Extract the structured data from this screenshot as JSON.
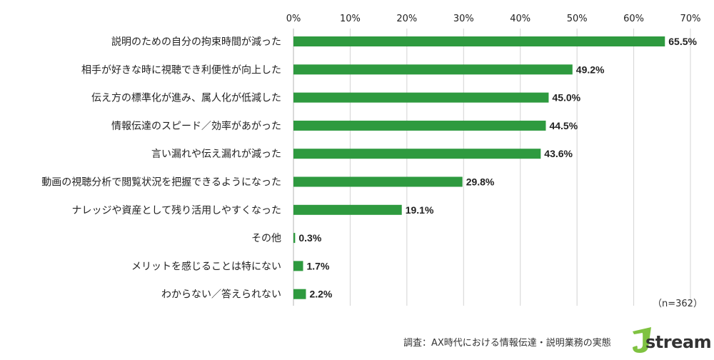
{
  "chart_data": {
    "type": "bar",
    "orientation": "horizontal",
    "categories": [
      "説明のための自分の拘束時間が減った",
      "相手が好きな時に視聴でき利便性が向上した",
      "伝え方の標準化が進み、属人化が低減した",
      "情報伝達のスピード／効率があがった",
      "言い漏れや伝え漏れが減った",
      "動画の視聴分析で閲覧状況を把握できるようになった",
      "ナレッジや資産として残り活用しやすくなった",
      "その他",
      "メリットを感じることは特にない",
      "わからない／答えられない"
    ],
    "values": [
      65.5,
      49.2,
      45.0,
      44.5,
      43.6,
      29.8,
      19.1,
      0.3,
      1.7,
      2.2
    ],
    "value_labels": [
      "65.5%",
      "49.2%",
      "45.0%",
      "44.5%",
      "43.6%",
      "29.8%",
      "19.1%",
      "0.3%",
      "1.7%",
      "2.2%"
    ],
    "xlim": [
      0,
      70
    ],
    "x_ticks": [
      0,
      10,
      20,
      30,
      40,
      50,
      60,
      70
    ],
    "x_tick_labels": [
      "0%",
      "10%",
      "20%",
      "30%",
      "40%",
      "50%",
      "60%",
      "70%"
    ],
    "x_axis_position": "top",
    "grid": true,
    "bar_color": "#2e9a3f",
    "grid_color": "#d3d3d3"
  },
  "notes": {
    "sample": "（n=362）",
    "source": "調査：AX時代における情報伝達・説明業務の実態"
  },
  "logo": {
    "text": "stream",
    "mark": "J",
    "mark_color": "#7fc241",
    "text_color": "#333333"
  }
}
